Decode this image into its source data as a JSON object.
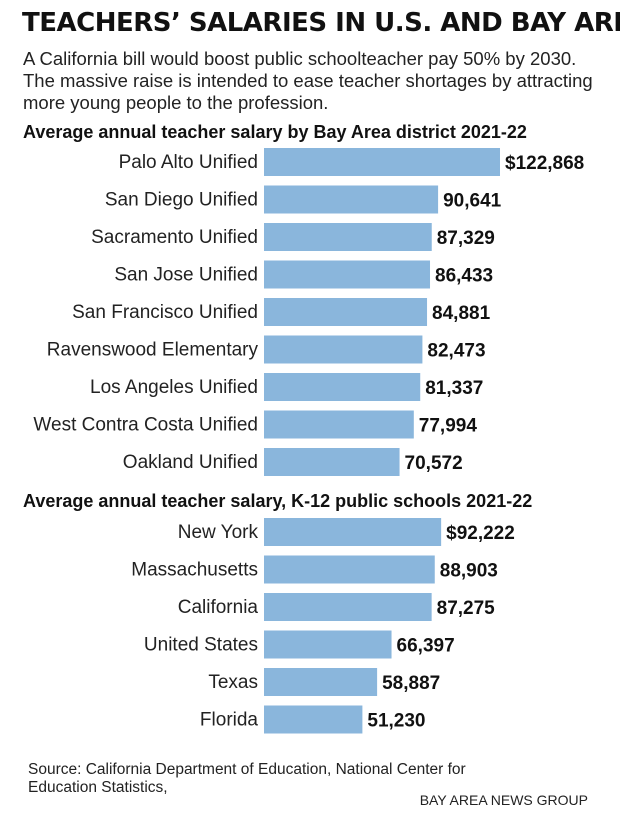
{
  "title": "TEACHERS’ SALARIES IN U.S. AND BAY AREA",
  "intro": "A California bill would boost public schoolteacher pay 50% by 2030. The massive raise is intended to ease teacher shortages by attracting more young people to the profession.",
  "source": "Source: California Department of Education, National Center for Education Statistics,",
  "credit": "BAY AREA NEWS GROUP",
  "colors": {
    "bar": "#8ab6dc",
    "text": "#111111"
  },
  "chart_data": [
    {
      "type": "bar",
      "orientation": "horizontal",
      "title": "Average annual teacher salary by Bay Area district 2021-22",
      "categories": [
        "Palo Alto Unified",
        "San Diego Unified",
        "Sacramento Unified",
        "San Jose Unified",
        "San Francisco Unified",
        "Ravenswood Elementary",
        "Los Angeles Unified",
        "West Contra Costa Unified",
        "Oakland Unified"
      ],
      "values": [
        122868,
        90641,
        87329,
        86433,
        84881,
        82473,
        81337,
        77994,
        70572
      ],
      "value_labels": [
        "$122,868",
        "90,641",
        "87,329",
        "86,433",
        "84,881",
        "82,473",
        "81,337",
        "77,994",
        "70,572"
      ]
    },
    {
      "type": "bar",
      "orientation": "horizontal",
      "title": "Average annual teacher salary, K-12 public schools 2021-22",
      "categories": [
        "New York",
        "Massachusetts",
        "California",
        "United States",
        "Texas",
        "Florida"
      ],
      "values": [
        92222,
        88903,
        87275,
        66397,
        58887,
        51230
      ],
      "value_labels": [
        "$92,222",
        "88,903",
        "87,275",
        "66,397",
        "58,887",
        "51,230"
      ]
    }
  ]
}
